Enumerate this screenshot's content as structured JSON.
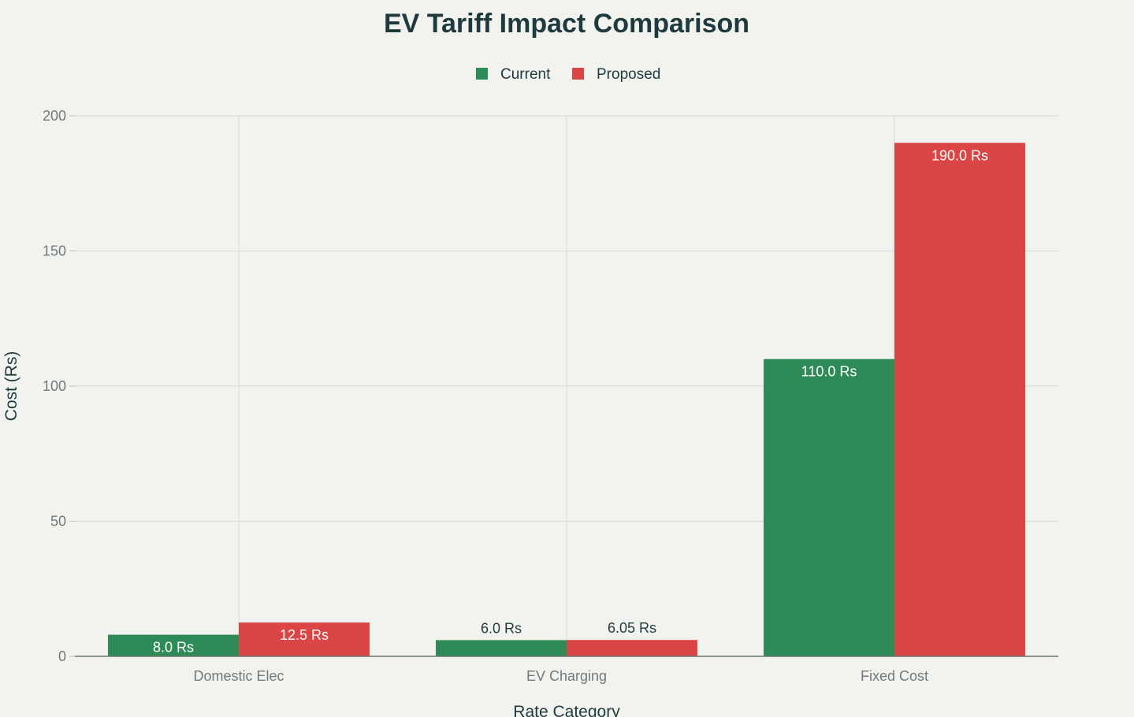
{
  "chart_data": {
    "type": "bar",
    "title": "EV Tariff Impact Comparison",
    "xlabel": "Rate Category",
    "ylabel": "Cost (Rs)",
    "categories": [
      "Domestic Elec",
      "EV Charging",
      "Fixed Cost"
    ],
    "series": [
      {
        "name": "Current",
        "values": [
          8.0,
          6.0,
          110.0
        ],
        "labels": [
          "8.0 Rs",
          "6.0 Rs",
          "110.0 Rs"
        ],
        "color": "#2e8b57"
      },
      {
        "name": "Proposed",
        "values": [
          12.5,
          6.05,
          190.0
        ],
        "labels": [
          "12.5 Rs",
          "6.05 Rs",
          "190.0 Rs"
        ],
        "color": "#db4545"
      }
    ],
    "ylim": [
      0,
      200
    ],
    "yticks": [
      0,
      50,
      100,
      150,
      200
    ],
    "grid": true,
    "legend_position": "top-center"
  }
}
